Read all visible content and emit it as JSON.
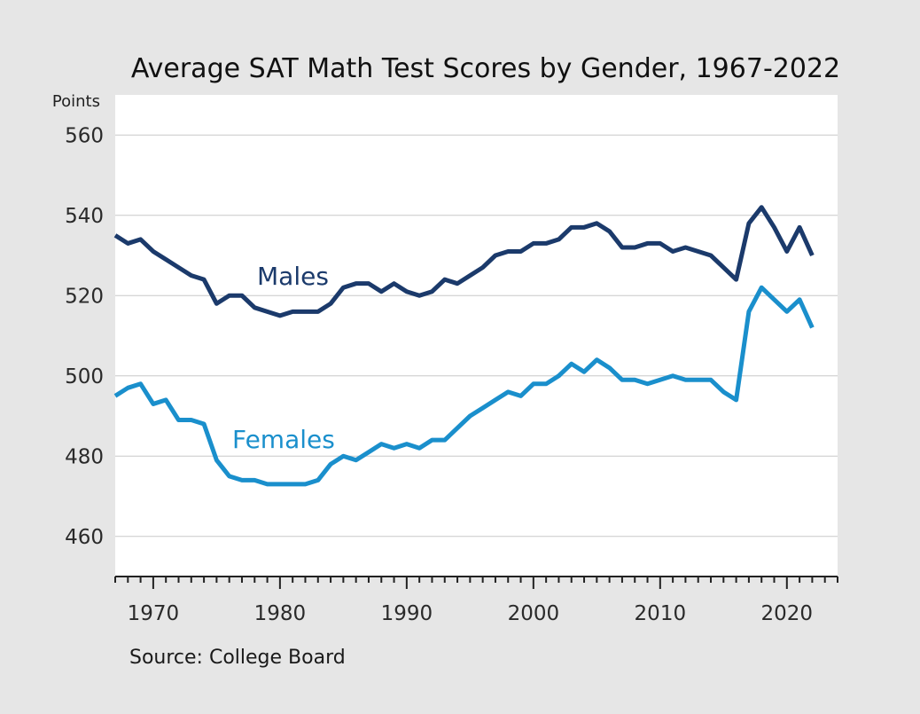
{
  "chart_data": {
    "type": "line",
    "title": "Average SAT Math Test Scores by Gender, 1967-2022",
    "ylabel": "Points",
    "xlabel": "",
    "source": "Source: College Board",
    "xlim": [
      1967,
      2024
    ],
    "ylim": [
      450,
      570
    ],
    "y_ticks": [
      460,
      480,
      500,
      520,
      540,
      560
    ],
    "x_tick_labels": [
      1970,
      1980,
      1990,
      2000,
      2010,
      2020
    ],
    "grid": "horizontal",
    "legend": "inline labels",
    "x": [
      1967,
      1968,
      1969,
      1970,
      1971,
      1972,
      1973,
      1974,
      1975,
      1976,
      1977,
      1978,
      1979,
      1980,
      1981,
      1982,
      1983,
      1984,
      1985,
      1986,
      1987,
      1988,
      1989,
      1990,
      1991,
      1992,
      1993,
      1994,
      1995,
      1996,
      1997,
      1998,
      1999,
      2000,
      2001,
      2002,
      2003,
      2004,
      2005,
      2006,
      2007,
      2008,
      2009,
      2010,
      2011,
      2012,
      2013,
      2014,
      2015,
      2016,
      2017,
      2018,
      2019,
      2020,
      2021,
      2022
    ],
    "series": [
      {
        "name": "Males",
        "color": "#1b3a6b",
        "values": [
          535,
          533,
          534,
          531,
          529,
          527,
          525,
          524,
          518,
          520,
          520,
          517,
          516,
          515,
          516,
          516,
          516,
          518,
          522,
          523,
          523,
          521,
          523,
          521,
          520,
          521,
          524,
          523,
          525,
          527,
          530,
          531,
          531,
          533,
          533,
          534,
          537,
          537,
          538,
          536,
          532,
          532,
          533,
          533,
          531,
          532,
          531,
          530,
          527,
          524,
          538,
          542,
          537,
          531,
          537,
          530
        ]
      },
      {
        "name": "Females",
        "color": "#1a8fcc",
        "values": [
          495,
          497,
          498,
          493,
          494,
          489,
          489,
          488,
          479,
          475,
          474,
          474,
          473,
          473,
          473,
          473,
          474,
          478,
          480,
          479,
          481,
          483,
          482,
          483,
          482,
          484,
          484,
          487,
          490,
          492,
          494,
          496,
          495,
          498,
          498,
          500,
          503,
          501,
          504,
          502,
          499,
          499,
          498,
          499,
          500,
          499,
          499,
          499,
          496,
          494,
          516,
          522,
          519,
          516,
          519,
          512
        ]
      }
    ]
  }
}
